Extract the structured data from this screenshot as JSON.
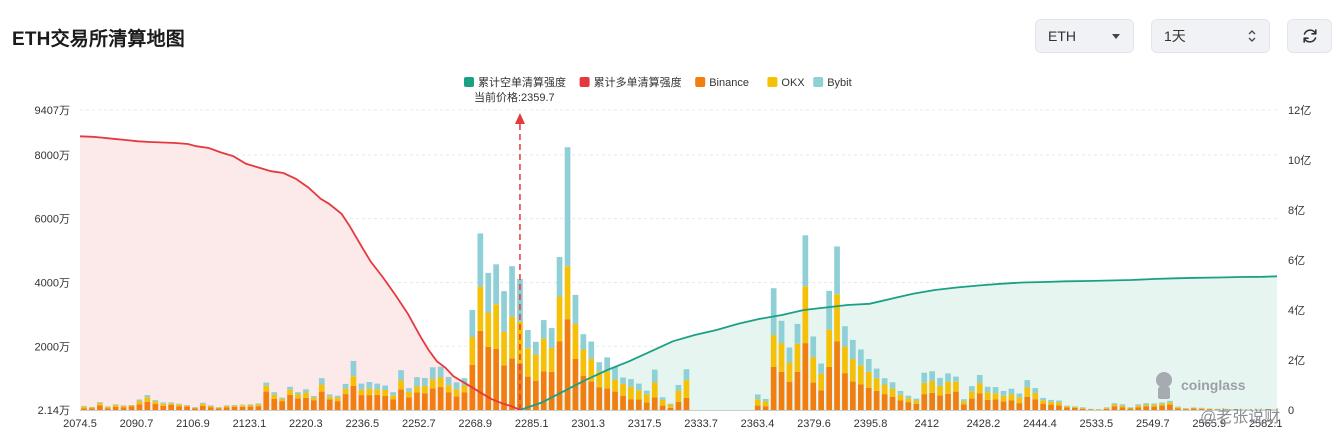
{
  "header": {
    "title": "ETH交易所清算地图",
    "asset_select": {
      "value": "ETH"
    },
    "range_select": {
      "value": "1天"
    }
  },
  "colors": {
    "short_line": "#1aa184",
    "short_fill": "#e7f5f0",
    "long_line": "#e5393f",
    "long_fill": "#fce9ea",
    "binance": "#f07e10",
    "okx": "#f5c108",
    "bybit": "#8fd0d6",
    "price_marker": "#e5393f"
  },
  "watermark": {
    "logo": "coinglass",
    "author": "@老张说财",
    "icon": "coinglass-icon"
  },
  "chart_data": {
    "type": "bar",
    "legend": [
      {
        "name": "累计空单清算强度",
        "color": "#1aa184"
      },
      {
        "name": "累计多单清算强度",
        "color": "#e5393f"
      },
      {
        "name": "Binance",
        "color": "#f07e10"
      },
      {
        "name": "OKX",
        "color": "#f5c108"
      },
      {
        "name": "Bybit",
        "color": "#8fd0d6"
      }
    ],
    "legend_position": "top-center",
    "current_price_label": "当前价格:2359.7",
    "current_price_index": 55.5,
    "y_left": {
      "ticks": [
        "2.14万",
        "2000万",
        "4000万",
        "6000万",
        "8000万",
        "9407万"
      ],
      "values": [
        2.14,
        2000,
        4000,
        6000,
        8000,
        9407
      ],
      "range": [
        2.14,
        9407
      ],
      "unit": "万"
    },
    "y_right": {
      "ticks": [
        "0",
        "2亿",
        "4亿",
        "6亿",
        "8亿",
        "10亿",
        "12亿"
      ],
      "values": [
        0,
        2,
        4,
        6,
        8,
        10,
        12
      ],
      "range": [
        0,
        12
      ],
      "unit": "亿"
    },
    "x_ticks": [
      "2074.5",
      "2090.7",
      "2106.9",
      "2123.1",
      "2220.3",
      "2236.5",
      "2252.7",
      "2268.9",
      "2285.1",
      "2301.3",
      "2317.5",
      "2333.7",
      "2363.4",
      "2379.6",
      "2395.8",
      "2412",
      "2428.2",
      "2444.4",
      "2533.5",
      "2549.7",
      "2565.9",
      "2582.1"
    ],
    "x_tick_positions": [
      0,
      5,
      10,
      15,
      20,
      25,
      30,
      35,
      40,
      45,
      50,
      55,
      60,
      65,
      70,
      75,
      80,
      85,
      90,
      95,
      100,
      105
    ],
    "series": [
      {
        "name": "Binance",
        "values": [
          60,
          60,
          150,
          60,
          100,
          90,
          120,
          180,
          260,
          190,
          130,
          160,
          120,
          110,
          60,
          130,
          90,
          50,
          90,
          100,
          100,
          110,
          120,
          580,
          350,
          280,
          480,
          370,
          380,
          310,
          580,
          330,
          280,
          500,
          760,
          470,
          470,
          480,
          440,
          330,
          650,
          400,
          550,
          530,
          680,
          720,
          550,
          430,
          550,
          1420,
          2480,
          1980,
          1920,
          1400,
          1620,
          1470,
          1050,
          920,
          1210,
          1200,
          2150,
          2850,
          1600,
          1080,
          900,
          710,
          680,
          580,
          450,
          340,
          330,
          240,
          400,
          140,
          70,
          260,
          380,
          0,
          0,
          0,
          0,
          0,
          0,
          0,
          0,
          140,
          120,
          1350,
          1200,
          880,
          1200,
          2100,
          860,
          620,
          1350,
          2150,
          1160,
          900,
          800,
          700,
          600,
          500,
          420,
          300,
          250,
          200,
          500,
          540,
          460,
          510,
          580,
          180,
          360,
          520,
          320,
          330,
          270,
          300,
          220,
          420,
          340,
          200,
          170,
          150,
          80,
          70,
          40,
          20,
          10,
          40,
          120,
          90,
          50,
          90,
          120,
          110,
          140,
          170,
          60,
          30,
          50,
          40,
          30,
          20,
          20,
          10,
          10,
          10,
          10,
          10,
          10
        ]
      },
      {
        "name": "OKX",
        "values": [
          50,
          30,
          70,
          40,
          60,
          40,
          30,
          100,
          140,
          80,
          70,
          50,
          60,
          30,
          20,
          70,
          40,
          30,
          40,
          40,
          50,
          50,
          60,
          180,
          130,
          70,
          160,
          120,
          170,
          80,
          220,
          90,
          110,
          170,
          300,
          170,
          200,
          170,
          190,
          120,
          280,
          170,
          190,
          230,
          290,
          300,
          230,
          220,
          220,
          870,
          1390,
          1080,
          1400,
          1050,
          1310,
          1300,
          890,
          820,
          1030,
          750,
          1410,
          1660,
          1100,
          820,
          710,
          510,
          530,
          380,
          370,
          390,
          290,
          260,
          470,
          180,
          100,
          350,
          560,
          0,
          0,
          0,
          0,
          0,
          0,
          0,
          0,
          200,
          150,
          1000,
          900,
          610,
          880,
          1780,
          800,
          520,
          1170,
          1480,
          830,
          700,
          600,
          500,
          400,
          300,
          250,
          180,
          120,
          100,
          350,
          380,
          300,
          380,
          310,
          100,
          230,
          330,
          240,
          200,
          180,
          200,
          180,
          290,
          200,
          110,
          90,
          90,
          40,
          30,
          30,
          10,
          10,
          30,
          60,
          50,
          20,
          50,
          50,
          60,
          60,
          70,
          30,
          20,
          20,
          20,
          10,
          10,
          10,
          0,
          0,
          0,
          0,
          0,
          0
        ]
      },
      {
        "name": "Bybit",
        "values": [
          20,
          10,
          30,
          20,
          20,
          20,
          10,
          50,
          70,
          40,
          40,
          30,
          20,
          20,
          10,
          30,
          20,
          10,
          20,
          20,
          20,
          20,
          30,
          100,
          80,
          40,
          90,
          70,
          100,
          50,
          200,
          70,
          60,
          150,
          480,
          190,
          210,
          180,
          140,
          110,
          320,
          120,
          290,
          250,
          370,
          340,
          260,
          220,
          230,
          850,
          1670,
          1240,
          1250,
          1280,
          1580,
          1340,
          570,
          400,
          580,
          620,
          1240,
          3730,
          910,
          480,
          540,
          280,
          440,
          390,
          200,
          240,
          210,
          110,
          400,
          80,
          30,
          180,
          340,
          0,
          0,
          0,
          0,
          0,
          0,
          0,
          0,
          150,
          80,
          1470,
          700,
          470,
          620,
          1600,
          650,
          320,
          1220,
          1500,
          640,
          600,
          500,
          400,
          300,
          200,
          200,
          120,
          80,
          60,
          320,
          300,
          250,
          260,
          160,
          60,
          160,
          250,
          170,
          190,
          150,
          170,
          120,
          230,
          150,
          70,
          60,
          60,
          20,
          20,
          20,
          10,
          10,
          20,
          40,
          40,
          20,
          40,
          50,
          40,
          40,
          50,
          20,
          10,
          10,
          10,
          10,
          10,
          10,
          0,
          0,
          0,
          0,
          0,
          0
        ]
      },
      {
        "name": "累计多单清算强度",
        "axis": "right",
        "unit": "亿",
        "points": [
          [
            0,
            10.95
          ],
          [
            3,
            10.93
          ],
          [
            5,
            10.9
          ],
          [
            8,
            10.85
          ],
          [
            11,
            10.8
          ],
          [
            14,
            10.75
          ],
          [
            17,
            10.72
          ],
          [
            20,
            10.7
          ],
          [
            23,
            10.68
          ],
          [
            26,
            10.64
          ],
          [
            28,
            10.55
          ],
          [
            31,
            10.48
          ],
          [
            34,
            10.3
          ],
          [
            37,
            10.15
          ],
          [
            40,
            9.85
          ],
          [
            43,
            9.7
          ],
          [
            46,
            9.55
          ],
          [
            49,
            9.48
          ],
          [
            52,
            9.25
          ],
          [
            55,
            8.9
          ],
          [
            58,
            8.45
          ],
          [
            60,
            8.25
          ],
          [
            63,
            7.85
          ],
          [
            65,
            7.35
          ],
          [
            68,
            6.5
          ],
          [
            70,
            5.95
          ],
          [
            73,
            5.3
          ],
          [
            76,
            4.6
          ],
          [
            79,
            3.85
          ],
          [
            82,
            2.95
          ],
          [
            84,
            2.4
          ],
          [
            86,
            1.95
          ],
          [
            88,
            1.7
          ],
          [
            90,
            1.35
          ],
          [
            93,
            1.05
          ],
          [
            96,
            0.75
          ],
          [
            99,
            0.45
          ],
          [
            102,
            0.25
          ],
          [
            104,
            0.15
          ],
          [
            106,
            0
          ]
        ]
      },
      {
        "name": "累计空单清算强度",
        "axis": "right",
        "unit": "亿",
        "points": [
          [
            0,
            0
          ],
          [
            3,
            0.3
          ],
          [
            6,
            0.75
          ],
          [
            9,
            1.2
          ],
          [
            12,
            1.6
          ],
          [
            15,
            1.95
          ],
          [
            18,
            2.35
          ],
          [
            21,
            2.75
          ],
          [
            24,
            3
          ],
          [
            27,
            3.2
          ],
          [
            30,
            3.45
          ],
          [
            33,
            3.65
          ],
          [
            36,
            3.8
          ],
          [
            39,
            4
          ],
          [
            42,
            4.1
          ],
          [
            45,
            4.2
          ],
          [
            48,
            4.25
          ],
          [
            51,
            4.45
          ],
          [
            54,
            4.65
          ],
          [
            57,
            4.8
          ],
          [
            60,
            4.9
          ],
          [
            63,
            4.98
          ],
          [
            66,
            5.05
          ],
          [
            69,
            5.1
          ],
          [
            72,
            5.12
          ],
          [
            75,
            5.15
          ],
          [
            78,
            5.16
          ],
          [
            81,
            5.18
          ],
          [
            84,
            5.2
          ],
          [
            87,
            5.24
          ],
          [
            90,
            5.27
          ],
          [
            93,
            5.29
          ],
          [
            96,
            5.3
          ],
          [
            99,
            5.32
          ],
          [
            102,
            5.33
          ],
          [
            104,
            5.35
          ]
        ]
      }
    ]
  }
}
